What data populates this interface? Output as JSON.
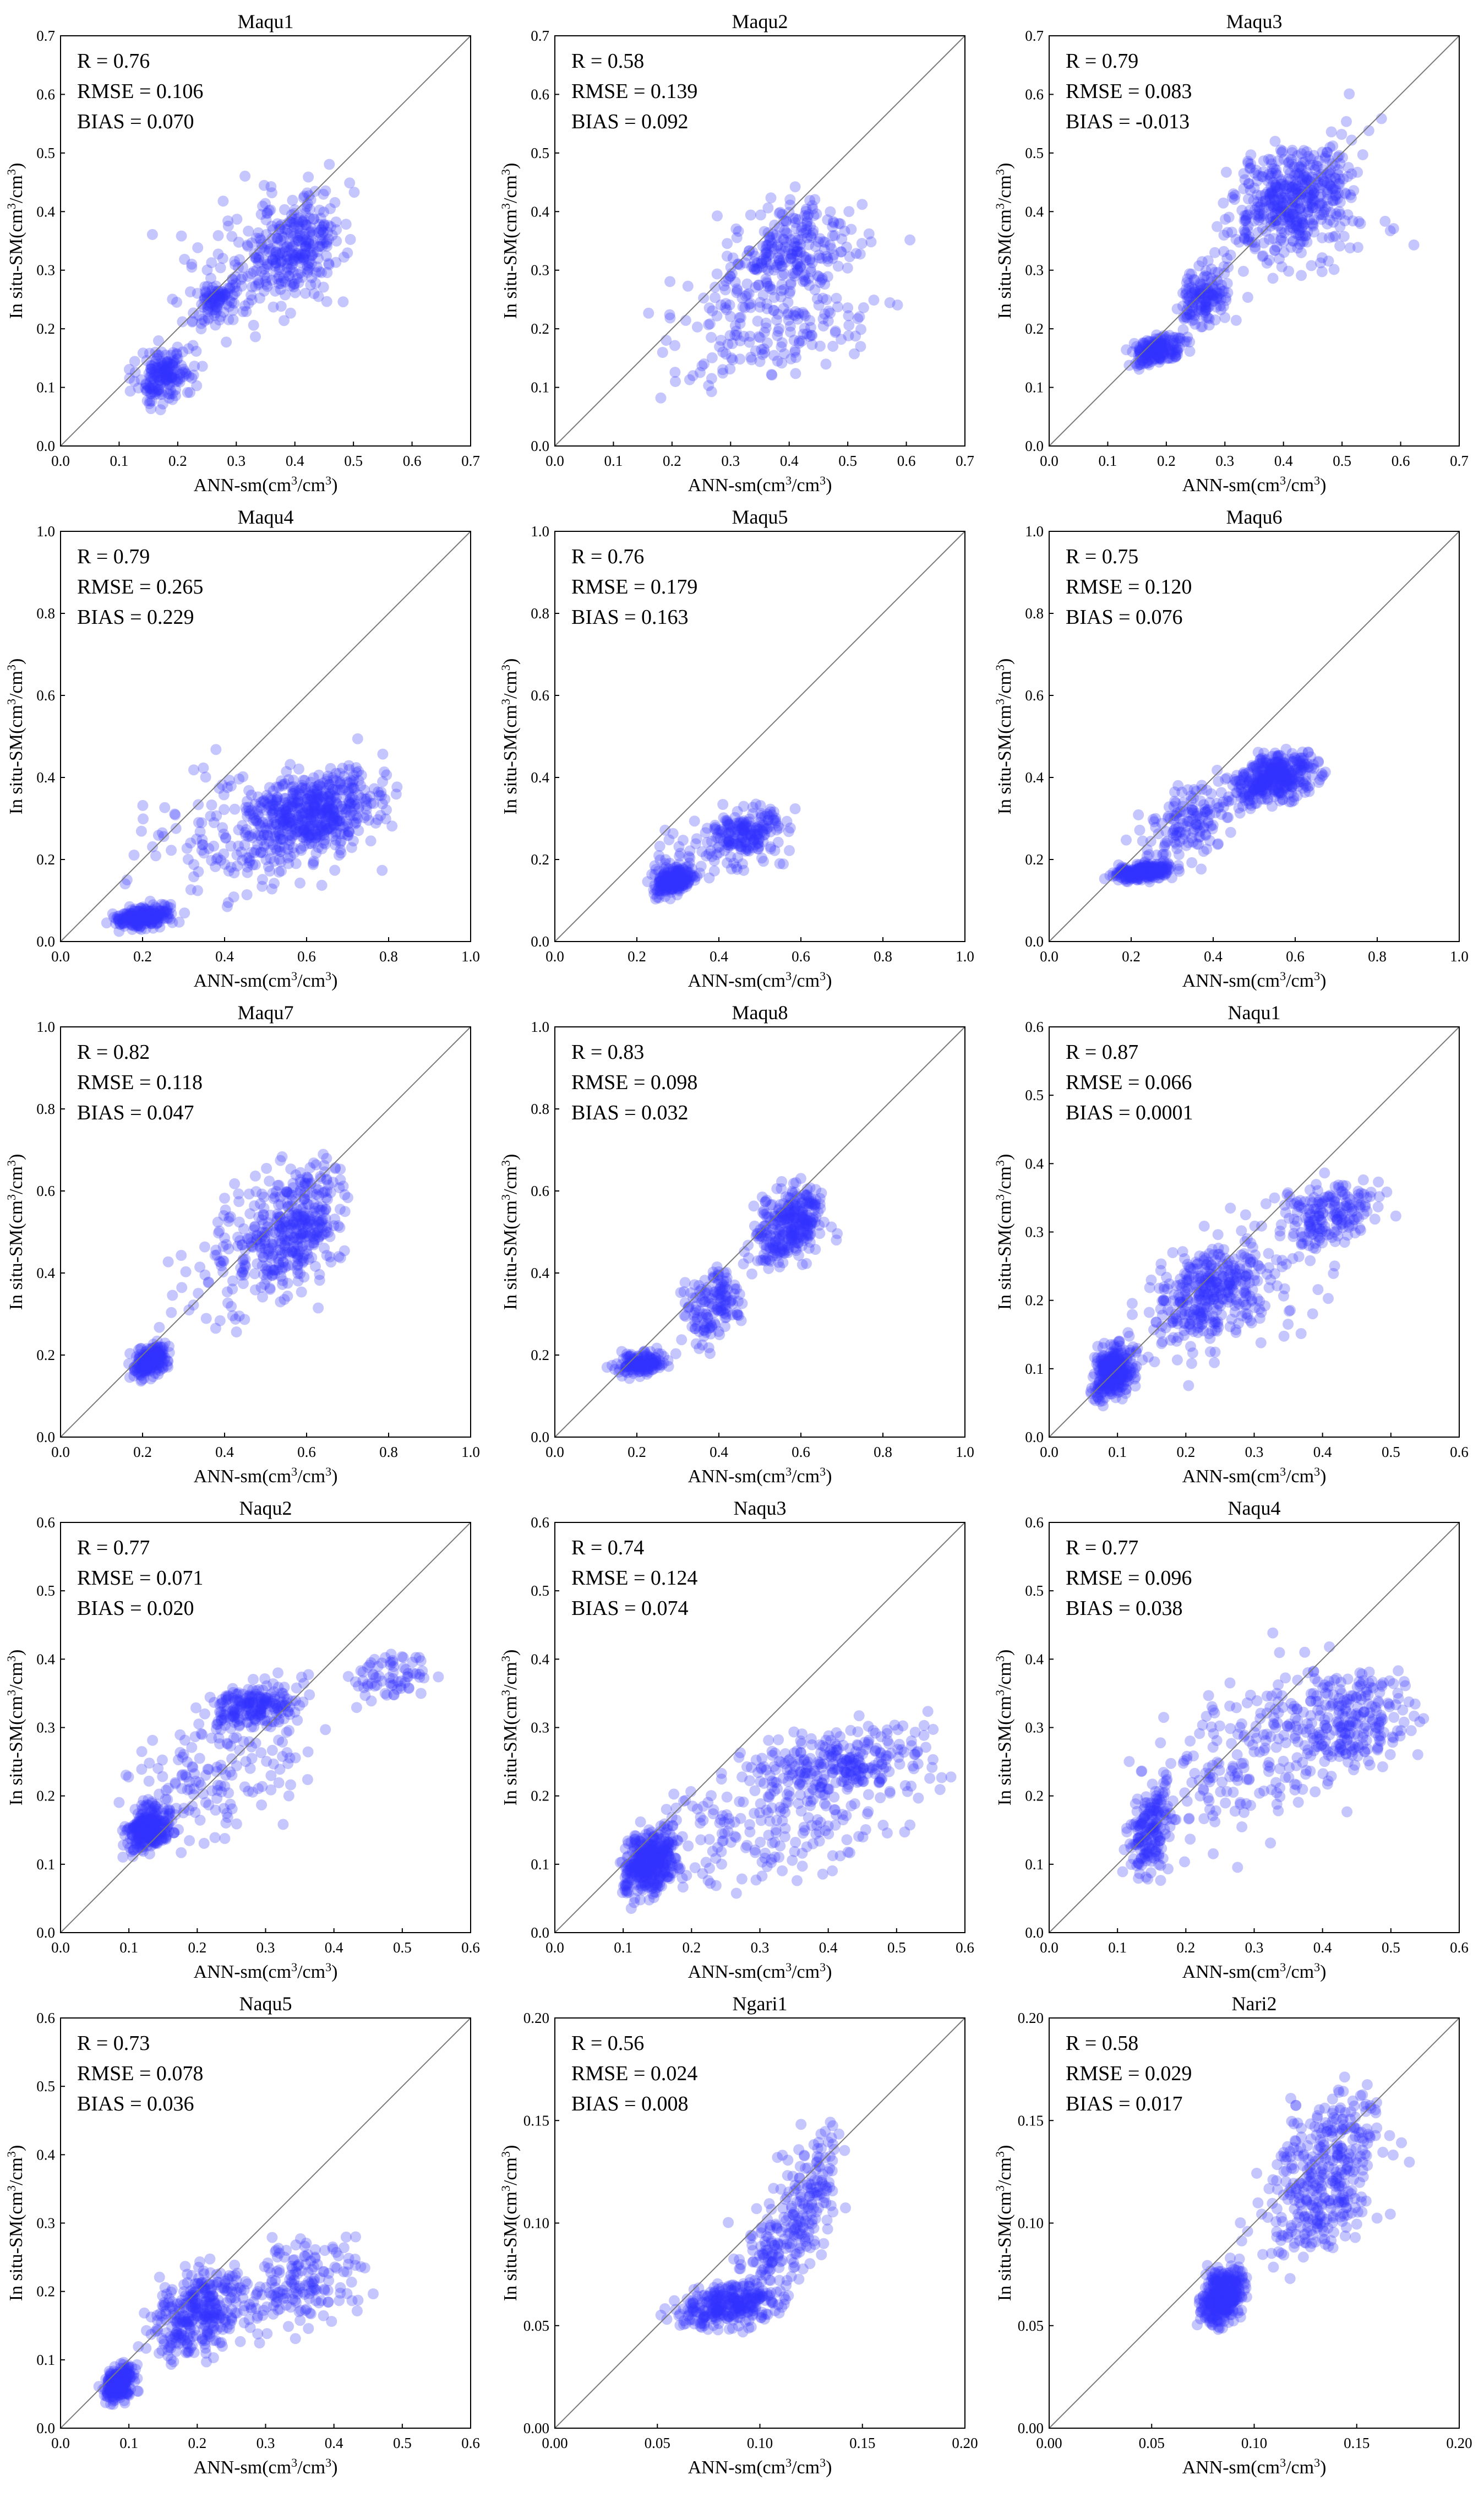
{
  "figure": {
    "x_label_main": "ANN-sm(cm",
    "x_label_mid": "/cm",
    "x_label_end": ")",
    "y_label_main": "In situ-SM(cm",
    "y_label_mid": "/cm",
    "y_label_end": ")",
    "superscript": "3",
    "point_color": "#3333ff",
    "point_opacity": 0.28
  },
  "chart_data": [
    {
      "type": "scatter",
      "title": "Maqu1",
      "stats": {
        "r": "R = 0.76",
        "rmse": "RMSE = 0.106",
        "bias": "BIAS = 0.070"
      },
      "xlim": [
        0,
        0.7
      ],
      "ylim": [
        0,
        0.7
      ],
      "xticks": [
        "0.0",
        "0.1",
        "0.2",
        "0.3",
        "0.4",
        "0.5",
        "0.6",
        "0.7"
      ],
      "yticks": [
        "0.0",
        "0.1",
        "0.2",
        "0.3",
        "0.4",
        "0.5",
        "0.6",
        "0.7"
      ],
      "n": 620,
      "clusters": [
        {
          "w": 0.28,
          "x": [
            0.1,
            0.25
          ],
          "y": [
            0.06,
            0.18
          ]
        },
        {
          "w": 0.14,
          "x": [
            0.22,
            0.32
          ],
          "y": [
            0.2,
            0.3
          ]
        },
        {
          "w": 0.36,
          "x": [
            0.3,
            0.5
          ],
          "y": [
            0.22,
            0.45
          ]
        },
        {
          "w": 0.22,
          "x": [
            0.12,
            0.58
          ],
          "y": [
            0.12,
            0.5
          ]
        }
      ]
    },
    {
      "type": "scatter",
      "title": "Maqu2",
      "stats": {
        "r": "R = 0.58",
        "rmse": "RMSE = 0.139",
        "bias": "BIAS = 0.092"
      },
      "xlim": [
        0,
        0.7
      ],
      "ylim": [
        0,
        0.7
      ],
      "xticks": [
        "0.0",
        "0.1",
        "0.2",
        "0.3",
        "0.4",
        "0.5",
        "0.6",
        "0.7"
      ],
      "yticks": [
        "0.0",
        "0.1",
        "0.2",
        "0.3",
        "0.4",
        "0.5",
        "0.6",
        "0.7"
      ],
      "n": 430,
      "clusters": [
        {
          "w": 0.5,
          "x": [
            0.25,
            0.55
          ],
          "y": [
            0.22,
            0.45
          ]
        },
        {
          "w": 0.3,
          "x": [
            0.12,
            0.62
          ],
          "y": [
            0.08,
            0.3
          ]
        },
        {
          "w": 0.2,
          "x": [
            0.12,
            0.66
          ],
          "y": [
            0.08,
            0.48
          ]
        }
      ]
    },
    {
      "type": "scatter",
      "title": "Maqu3",
      "stats": {
        "r": "R = 0.79",
        "rmse": "RMSE = 0.083",
        "bias": "BIAS = -0.013"
      },
      "xlim": [
        0,
        0.7
      ],
      "ylim": [
        0,
        0.7
      ],
      "xticks": [
        "0.0",
        "0.1",
        "0.2",
        "0.3",
        "0.4",
        "0.5",
        "0.6",
        "0.7"
      ],
      "yticks": [
        "0.0",
        "0.1",
        "0.2",
        "0.3",
        "0.4",
        "0.5",
        "0.6",
        "0.7"
      ],
      "n": 820,
      "clusters": [
        {
          "w": 0.22,
          "x": [
            0.12,
            0.25
          ],
          "y": [
            0.13,
            0.2
          ]
        },
        {
          "w": 0.18,
          "x": [
            0.2,
            0.32
          ],
          "y": [
            0.17,
            0.33
          ]
        },
        {
          "w": 0.45,
          "x": [
            0.28,
            0.56
          ],
          "y": [
            0.3,
            0.55
          ]
        },
        {
          "w": 0.15,
          "x": [
            0.2,
            0.65
          ],
          "y": [
            0.2,
            0.6
          ]
        }
      ]
    },
    {
      "type": "scatter",
      "title": "Maqu4",
      "stats": {
        "r": "R = 0.79",
        "rmse": "RMSE = 0.265",
        "bias": "BIAS = 0.229"
      },
      "xlim": [
        0,
        1.0
      ],
      "ylim": [
        0,
        1.0
      ],
      "xticks": [
        "0.0",
        "0.2",
        "0.4",
        "0.6",
        "0.8",
        "1.0"
      ],
      "yticks": [
        "0.0",
        "0.2",
        "0.4",
        "0.6",
        "0.8",
        "1.0"
      ],
      "n": 900,
      "clusters": [
        {
          "w": 0.25,
          "x": [
            0.1,
            0.3
          ],
          "y": [
            0.02,
            0.1
          ]
        },
        {
          "w": 0.5,
          "x": [
            0.4,
            0.85
          ],
          "y": [
            0.18,
            0.45
          ]
        },
        {
          "w": 0.25,
          "x": [
            0.1,
            0.9
          ],
          "y": [
            0.05,
            0.5
          ]
        }
      ]
    },
    {
      "type": "scatter",
      "title": "Maqu5",
      "stats": {
        "r": "R = 0.76",
        "rmse": "RMSE = 0.179",
        "bias": "BIAS = 0.163"
      },
      "xlim": [
        0,
        1.0
      ],
      "ylim": [
        0,
        1.0
      ],
      "xticks": [
        "0.0",
        "0.2",
        "0.4",
        "0.6",
        "0.8",
        "1.0"
      ],
      "yticks": [
        "0.0",
        "0.2",
        "0.4",
        "0.6",
        "0.8",
        "1.0"
      ],
      "n": 430,
      "clusters": [
        {
          "w": 0.45,
          "x": [
            0.22,
            0.36
          ],
          "y": [
            0.1,
            0.2
          ]
        },
        {
          "w": 0.4,
          "x": [
            0.32,
            0.62
          ],
          "y": [
            0.18,
            0.34
          ]
        },
        {
          "w": 0.15,
          "x": [
            0.12,
            0.6
          ],
          "y": [
            0.1,
            0.36
          ]
        }
      ]
    },
    {
      "type": "scatter",
      "title": "Maqu6",
      "stats": {
        "r": "R = 0.75",
        "rmse": "RMSE = 0.120",
        "bias": "BIAS = 0.076"
      },
      "xlim": [
        0,
        1.0
      ],
      "ylim": [
        0,
        1.0
      ],
      "xticks": [
        "0.0",
        "0.2",
        "0.4",
        "0.6",
        "0.8",
        "1.0"
      ],
      "yticks": [
        "0.0",
        "0.2",
        "0.4",
        "0.6",
        "0.8",
        "1.0"
      ],
      "n": 760,
      "clusters": [
        {
          "w": 0.3,
          "x": [
            0.12,
            0.34
          ],
          "y": [
            0.14,
            0.2
          ]
        },
        {
          "w": 0.5,
          "x": [
            0.4,
            0.7
          ],
          "y": [
            0.32,
            0.48
          ]
        },
        {
          "w": 0.2,
          "x": [
            0.18,
            0.5
          ],
          "y": [
            0.16,
            0.42
          ]
        }
      ]
    },
    {
      "type": "scatter",
      "title": "Maqu7",
      "stats": {
        "r": "R = 0.82",
        "rmse": "RMSE = 0.118",
        "bias": "BIAS = 0.047"
      },
      "xlim": [
        0,
        1.0
      ],
      "ylim": [
        0,
        1.0
      ],
      "xticks": [
        "0.0",
        "0.2",
        "0.4",
        "0.6",
        "0.8",
        "1.0"
      ],
      "yticks": [
        "0.0",
        "0.2",
        "0.4",
        "0.6",
        "0.8",
        "1.0"
      ],
      "n": 640,
      "clusters": [
        {
          "w": 0.3,
          "x": [
            0.16,
            0.28
          ],
          "y": [
            0.13,
            0.24
          ]
        },
        {
          "w": 0.5,
          "x": [
            0.4,
            0.75
          ],
          "y": [
            0.3,
            0.75
          ]
        },
        {
          "w": 0.2,
          "x": [
            0.2,
            0.75
          ],
          "y": [
            0.2,
            0.7
          ]
        }
      ]
    },
    {
      "type": "scatter",
      "title": "Maqu8",
      "stats": {
        "r": "R = 0.83",
        "rmse": "RMSE = 0.098",
        "bias": "BIAS = 0.032"
      },
      "xlim": [
        0,
        1.0
      ],
      "ylim": [
        0,
        1.0
      ],
      "xticks": [
        "0.0",
        "0.2",
        "0.4",
        "0.6",
        "0.8",
        "1.0"
      ],
      "yticks": [
        "0.0",
        "0.2",
        "0.4",
        "0.6",
        "0.8",
        "1.0"
      ],
      "n": 600,
      "clusters": [
        {
          "w": 0.25,
          "x": [
            0.12,
            0.3
          ],
          "y": [
            0.14,
            0.22
          ]
        },
        {
          "w": 0.5,
          "x": [
            0.45,
            0.7
          ],
          "y": [
            0.38,
            0.65
          ]
        },
        {
          "w": 0.25,
          "x": [
            0.28,
            0.5
          ],
          "y": [
            0.2,
            0.45
          ]
        }
      ]
    },
    {
      "type": "scatter",
      "title": "Naqu1",
      "stats": {
        "r": "R = 0.87",
        "rmse": "RMSE = 0.066",
        "bias": "BIAS = 0.0001"
      },
      "xlim": [
        0,
        0.6
      ],
      "ylim": [
        0,
        0.6
      ],
      "xticks": [
        "0.0",
        "0.1",
        "0.2",
        "0.3",
        "0.4",
        "0.5",
        "0.6"
      ],
      "yticks": [
        "0.0",
        "0.1",
        "0.2",
        "0.3",
        "0.4",
        "0.5",
        "0.6"
      ],
      "n": 900,
      "clusters": [
        {
          "w": 0.35,
          "x": [
            0.05,
            0.14
          ],
          "y": [
            0.04,
            0.15
          ]
        },
        {
          "w": 0.35,
          "x": [
            0.12,
            0.35
          ],
          "y": [
            0.12,
            0.3
          ]
        },
        {
          "w": 0.2,
          "x": [
            0.3,
            0.52
          ],
          "y": [
            0.26,
            0.4
          ]
        },
        {
          "w": 0.1,
          "x": [
            0.05,
            0.5
          ],
          "y": [
            0.04,
            0.4
          ]
        }
      ]
    },
    {
      "type": "scatter",
      "title": "Naqu2",
      "stats": {
        "r": "R = 0.77",
        "rmse": "RMSE = 0.071",
        "bias": "BIAS = 0.020"
      },
      "xlim": [
        0,
        0.6
      ],
      "ylim": [
        0,
        0.6
      ],
      "xticks": [
        "0.0",
        "0.1",
        "0.2",
        "0.3",
        "0.4",
        "0.5",
        "0.6"
      ],
      "yticks": [
        "0.0",
        "0.1",
        "0.2",
        "0.3",
        "0.4",
        "0.5",
        "0.6"
      ],
      "n": 700,
      "clusters": [
        {
          "w": 0.4,
          "x": [
            0.08,
            0.18
          ],
          "y": [
            0.11,
            0.2
          ]
        },
        {
          "w": 0.3,
          "x": [
            0.18,
            0.38
          ],
          "y": [
            0.28,
            0.38
          ]
        },
        {
          "w": 0.1,
          "x": [
            0.4,
            0.58
          ],
          "y": [
            0.33,
            0.42
          ]
        },
        {
          "w": 0.2,
          "x": [
            0.05,
            0.42
          ],
          "y": [
            0.1,
            0.35
          ]
        }
      ]
    },
    {
      "type": "scatter",
      "title": "Naqu3",
      "stats": {
        "r": "R = 0.74",
        "rmse": "RMSE = 0.124",
        "bias": "BIAS = 0.074"
      },
      "xlim": [
        0,
        0.6
      ],
      "ylim": [
        0,
        0.6
      ],
      "xticks": [
        "0.0",
        "0.1",
        "0.2",
        "0.3",
        "0.4",
        "0.5",
        "0.6"
      ],
      "yticks": [
        "0.0",
        "0.1",
        "0.2",
        "0.3",
        "0.4",
        "0.5",
        "0.6"
      ],
      "n": 820,
      "clusters": [
        {
          "w": 0.45,
          "x": [
            0.08,
            0.2
          ],
          "y": [
            0.03,
            0.18
          ]
        },
        {
          "w": 0.3,
          "x": [
            0.22,
            0.6
          ],
          "y": [
            0.18,
            0.32
          ]
        },
        {
          "w": 0.25,
          "x": [
            0.08,
            0.6
          ],
          "y": [
            0.03,
            0.3
          ]
        }
      ]
    },
    {
      "type": "scatter",
      "title": "Naqu4",
      "stats": {
        "r": "R = 0.77",
        "rmse": "RMSE = 0.096",
        "bias": "BIAS = 0.038"
      },
      "xlim": [
        0,
        0.6
      ],
      "ylim": [
        0,
        0.6
      ],
      "xticks": [
        "0.0",
        "0.1",
        "0.2",
        "0.3",
        "0.4",
        "0.5",
        "0.6"
      ],
      "yticks": [
        "0.0",
        "0.1",
        "0.2",
        "0.3",
        "0.4",
        "0.5",
        "0.6"
      ],
      "n": 620,
      "clusters": [
        {
          "w": 0.3,
          "x": [
            0.1,
            0.2
          ],
          "y": [
            0.05,
            0.25
          ]
        },
        {
          "w": 0.4,
          "x": [
            0.3,
            0.58
          ],
          "y": [
            0.2,
            0.42
          ]
        },
        {
          "w": 0.3,
          "x": [
            0.1,
            0.5
          ],
          "y": [
            0.08,
            0.45
          ]
        }
      ]
    },
    {
      "type": "scatter",
      "title": "Naqu5",
      "stats": {
        "r": "R = 0.73",
        "rmse": "RMSE = 0.078",
        "bias": "BIAS = 0.036"
      },
      "xlim": [
        0,
        0.6
      ],
      "ylim": [
        0,
        0.6
      ],
      "xticks": [
        "0.0",
        "0.1",
        "0.2",
        "0.3",
        "0.4",
        "0.5",
        "0.6"
      ],
      "yticks": [
        "0.0",
        "0.1",
        "0.2",
        "0.3",
        "0.4",
        "0.5",
        "0.6"
      ],
      "n": 720,
      "clusters": [
        {
          "w": 0.3,
          "x": [
            0.05,
            0.12
          ],
          "y": [
            0.03,
            0.1
          ]
        },
        {
          "w": 0.45,
          "x": [
            0.1,
            0.3
          ],
          "y": [
            0.08,
            0.26
          ]
        },
        {
          "w": 0.25,
          "x": [
            0.2,
            0.5
          ],
          "y": [
            0.12,
            0.3
          ]
        }
      ]
    },
    {
      "type": "scatter",
      "title": "Ngari1",
      "stats": {
        "r": "R = 0.56",
        "rmse": "RMSE = 0.024",
        "bias": "BIAS = 0.008"
      },
      "xlim": [
        0,
        0.2
      ],
      "ylim": [
        0,
        0.2
      ],
      "xticks": [
        "0.00",
        "0.05",
        "0.10",
        "0.15",
        "0.20"
      ],
      "yticks": [
        "0.00",
        "0.05",
        "0.10",
        "0.15",
        "0.20"
      ],
      "n": 560,
      "clusters": [
        {
          "w": 0.55,
          "x": [
            0.05,
            0.12
          ],
          "y": [
            0.045,
            0.075
          ]
        },
        {
          "w": 0.25,
          "x": [
            0.08,
            0.14
          ],
          "y": [
            0.06,
            0.12
          ]
        },
        {
          "w": 0.2,
          "x": [
            0.1,
            0.15
          ],
          "y": [
            0.08,
            0.16
          ]
        }
      ]
    },
    {
      "type": "scatter",
      "title": "Nari2",
      "stats": {
        "r": "R = 0.58",
        "rmse": "RMSE = 0.029",
        "bias": "BIAS = 0.017"
      },
      "xlim": [
        0,
        0.2
      ],
      "ylim": [
        0,
        0.2
      ],
      "xticks": [
        "0.00",
        "0.05",
        "0.10",
        "0.15",
        "0.20"
      ],
      "yticks": [
        "0.00",
        "0.05",
        "0.10",
        "0.15",
        "0.20"
      ],
      "n": 760,
      "clusters": [
        {
          "w": 0.5,
          "x": [
            0.07,
            0.1
          ],
          "y": [
            0.045,
            0.085
          ]
        },
        {
          "w": 0.3,
          "x": [
            0.09,
            0.17
          ],
          "y": [
            0.07,
            0.15
          ]
        },
        {
          "w": 0.2,
          "x": [
            0.1,
            0.18
          ],
          "y": [
            0.1,
            0.18
          ]
        }
      ]
    }
  ]
}
